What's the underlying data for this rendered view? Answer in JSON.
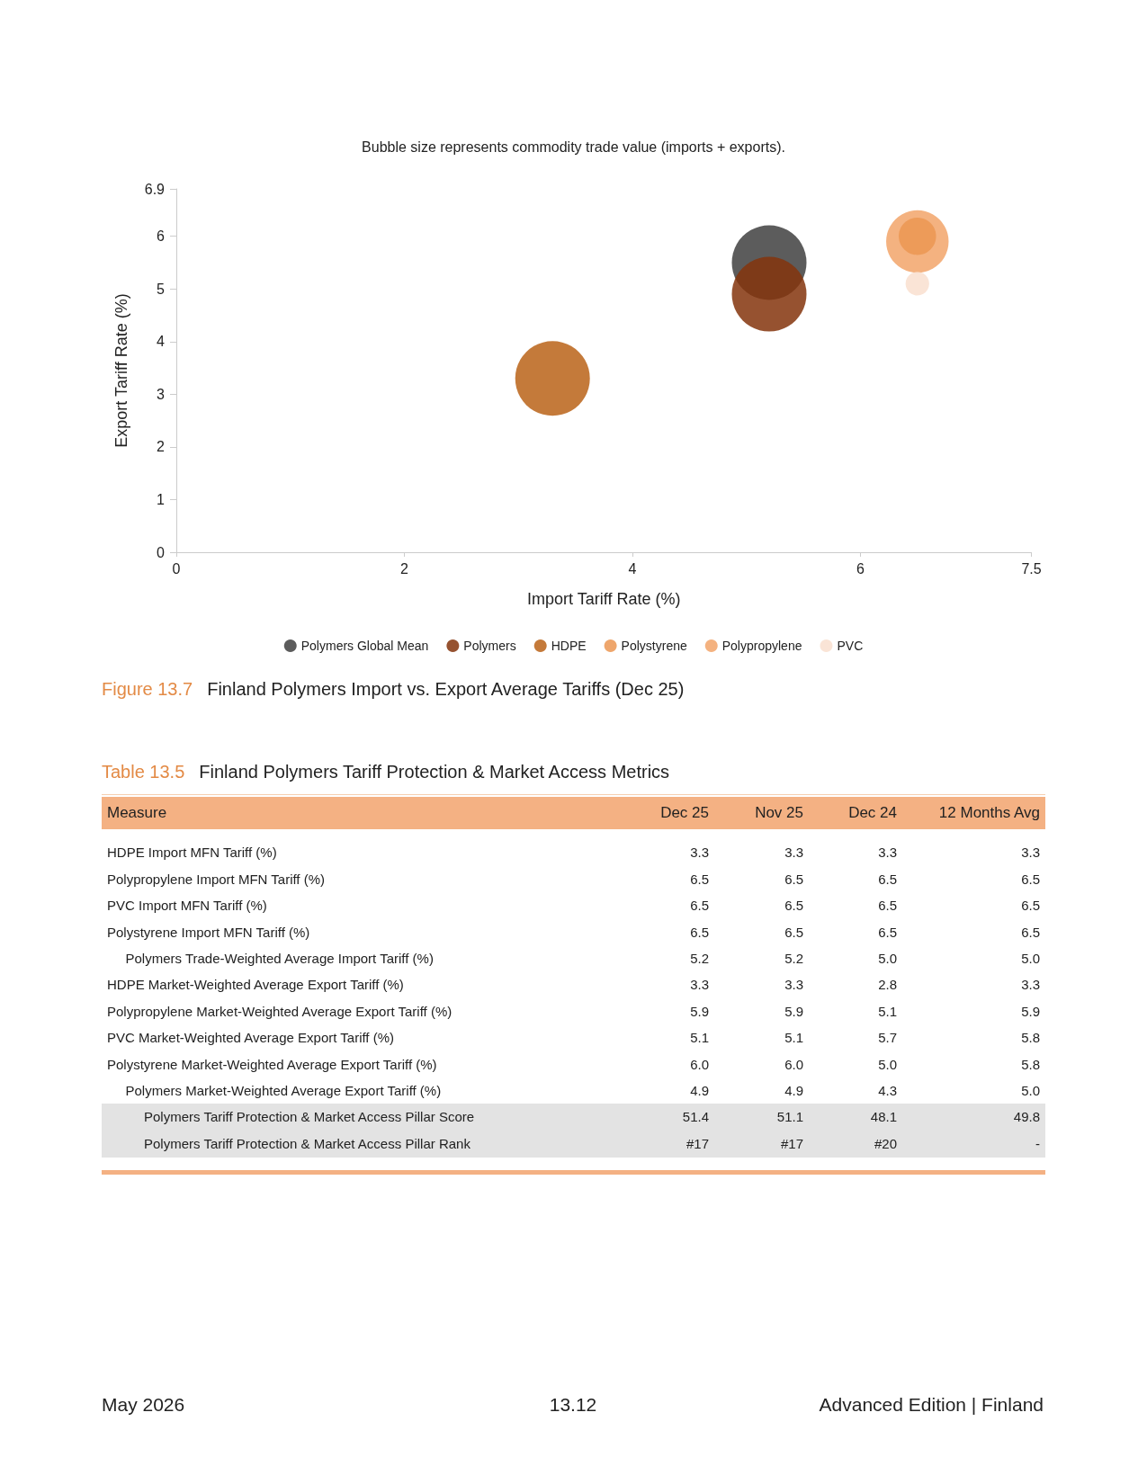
{
  "chart_data": [
    {
      "type": "bubble",
      "title": "Finland Polymers Import vs. Export Average Tariffs (Dec 25)",
      "subtitle": "Bubble size represents commodity trade value (imports + exports).",
      "xlabel": "Import Tariff Rate (%)",
      "ylabel": "Export Tariff Rate (%)",
      "annotations": [
        "Figure 13.7"
      ],
      "series": [
        {
          "name": "Polymers Global Mean",
          "color": "#3f3f3f",
          "x": [
            5.2
          ],
          "values": [
            5.5
          ],
          "sizes": [
            1
          ]
        },
        {
          "name": "Polymers",
          "color": "#84340c",
          "x": [
            5.2
          ],
          "values": [
            4.9
          ],
          "sizes": [
            1
          ]
        },
        {
          "name": "HDPE",
          "color": "#ba6318",
          "x": [
            3.3
          ],
          "values": [
            3.3
          ],
          "sizes": [
            1
          ]
        },
        {
          "name": "Polystyrene",
          "color": "#eb9652",
          "x": [
            6.5
          ],
          "values": [
            6.0
          ],
          "sizes": [
            0.25
          ]
        },
        {
          "name": "Polypropylene",
          "color": "#f2a46a",
          "x": [
            6.5
          ],
          "values": [
            5.9
          ],
          "sizes": [
            0.7
          ]
        },
        {
          "name": "PVC",
          "color": "#f9dfcf",
          "x": [
            6.5
          ],
          "values": [
            5.1
          ],
          "sizes": [
            0.1
          ]
        }
      ],
      "xlim": [
        0,
        7.5
      ],
      "xticks": [
        0,
        2,
        4,
        6,
        7.5
      ],
      "ylim": [
        0,
        6.9
      ],
      "yticks": [
        0,
        1,
        2,
        3,
        4,
        5,
        6,
        6.9
      ],
      "grid": false,
      "legend": "bottom"
    },
    {
      "type": "other",
      "title": "Finland Polymers Tariff Protection & Market Access Metrics",
      "ylabel": "Measure",
      "annotations": [
        "Table 13.5",
        "May 2026",
        "13.12",
        "Advanced Edition | Finland"
      ],
      "categories": [
        "HDPE Import MFN Tariff (%)",
        "Polypropylene Import MFN Tariff (%)",
        "PVC Import MFN Tariff (%)",
        "Polystyrene Import MFN Tariff (%)",
        "Polymers Trade-Weighted Average Import Tariff (%)",
        "HDPE Market-Weighted Average Export Tariff (%)",
        "Polypropylene Market-Weighted Average Export Tariff (%)",
        "PVC Market-Weighted Average Export Tariff (%)",
        "Polystyrene Market-Weighted Average Export Tariff (%)",
        "Polymers Market-Weighted Average Export Tariff (%)",
        "Polymers Tariff Protection & Market Access Pillar Score",
        "Polymers Tariff Protection & Market Access Pillar Rank"
      ],
      "series": [
        {
          "name": "Dec 25",
          "values": [
            3.3,
            6.5,
            6.5,
            6.5,
            5.2,
            3.3,
            5.9,
            5.1,
            6.0,
            4.9,
            51.4,
            17
          ],
          "value_labels": [
            "3.3",
            "6.5",
            "6.5",
            "6.5",
            "5.2",
            "3.3",
            "5.9",
            "5.1",
            "6.0",
            "4.9",
            "51.4",
            "#17"
          ]
        },
        {
          "name": "Nov 25",
          "values": [
            3.3,
            6.5,
            6.5,
            6.5,
            5.2,
            3.3,
            5.9,
            5.1,
            6.0,
            4.9,
            51.1,
            17
          ],
          "value_labels": [
            "3.3",
            "6.5",
            "6.5",
            "6.5",
            "5.2",
            "3.3",
            "5.9",
            "5.1",
            "6.0",
            "4.9",
            "51.1",
            "#17"
          ]
        },
        {
          "name": "Dec 24",
          "values": [
            3.3,
            6.5,
            6.5,
            6.5,
            5.0,
            2.8,
            5.1,
            5.7,
            5.0,
            4.3,
            48.1,
            20
          ],
          "value_labels": [
            "3.3",
            "6.5",
            "6.5",
            "6.5",
            "5.0",
            "2.8",
            "5.1",
            "5.7",
            "5.0",
            "4.3",
            "48.1",
            "#20"
          ]
        },
        {
          "name": "12 Months Avg",
          "values": [
            3.3,
            6.5,
            6.5,
            6.5,
            5.0,
            3.3,
            5.9,
            5.8,
            5.8,
            5.0,
            49.8,
            null
          ],
          "value_labels": [
            "3.3",
            "6.5",
            "6.5",
            "6.5",
            "5.0",
            "3.3",
            "5.9",
            "5.8",
            "5.8",
            "5.0",
            "49.8",
            "-"
          ]
        }
      ]
    }
  ]
}
